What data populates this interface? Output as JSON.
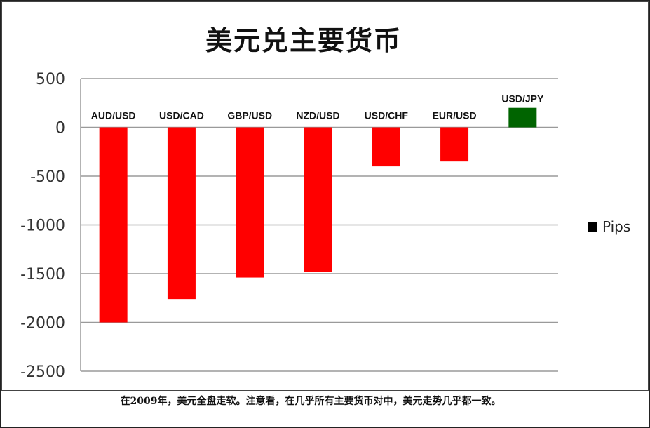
{
  "chart_data": {
    "type": "bar",
    "title": "美元兑主要货币",
    "categories": [
      "AUD/USD",
      "USD/CAD",
      "GBP/USD",
      "NZD/USD",
      "USD/CHF",
      "EUR/USD",
      "USD/JPY"
    ],
    "series": [
      {
        "name": "Pips",
        "values": [
          -2000,
          -1760,
          -1540,
          -1480,
          -400,
          -350,
          200
        ],
        "colors": [
          "#ff0000",
          "#ff0000",
          "#ff0000",
          "#ff0000",
          "#ff0000",
          "#ff0000",
          "#006400"
        ]
      }
    ],
    "yticks": [
      500,
      0,
      -500,
      -1000,
      -1500,
      -2000,
      -2500
    ],
    "ylim": [
      -2500,
      500
    ],
    "grid": true,
    "legend_position": "right"
  },
  "caption": "在2009年，美元全盘走软。注意看，在几乎所有主要货币对中，美元走势几乎都一致。",
  "colors": {
    "negative": "#ff0000",
    "positive": "#006400",
    "grid": "#9a9a9a"
  }
}
